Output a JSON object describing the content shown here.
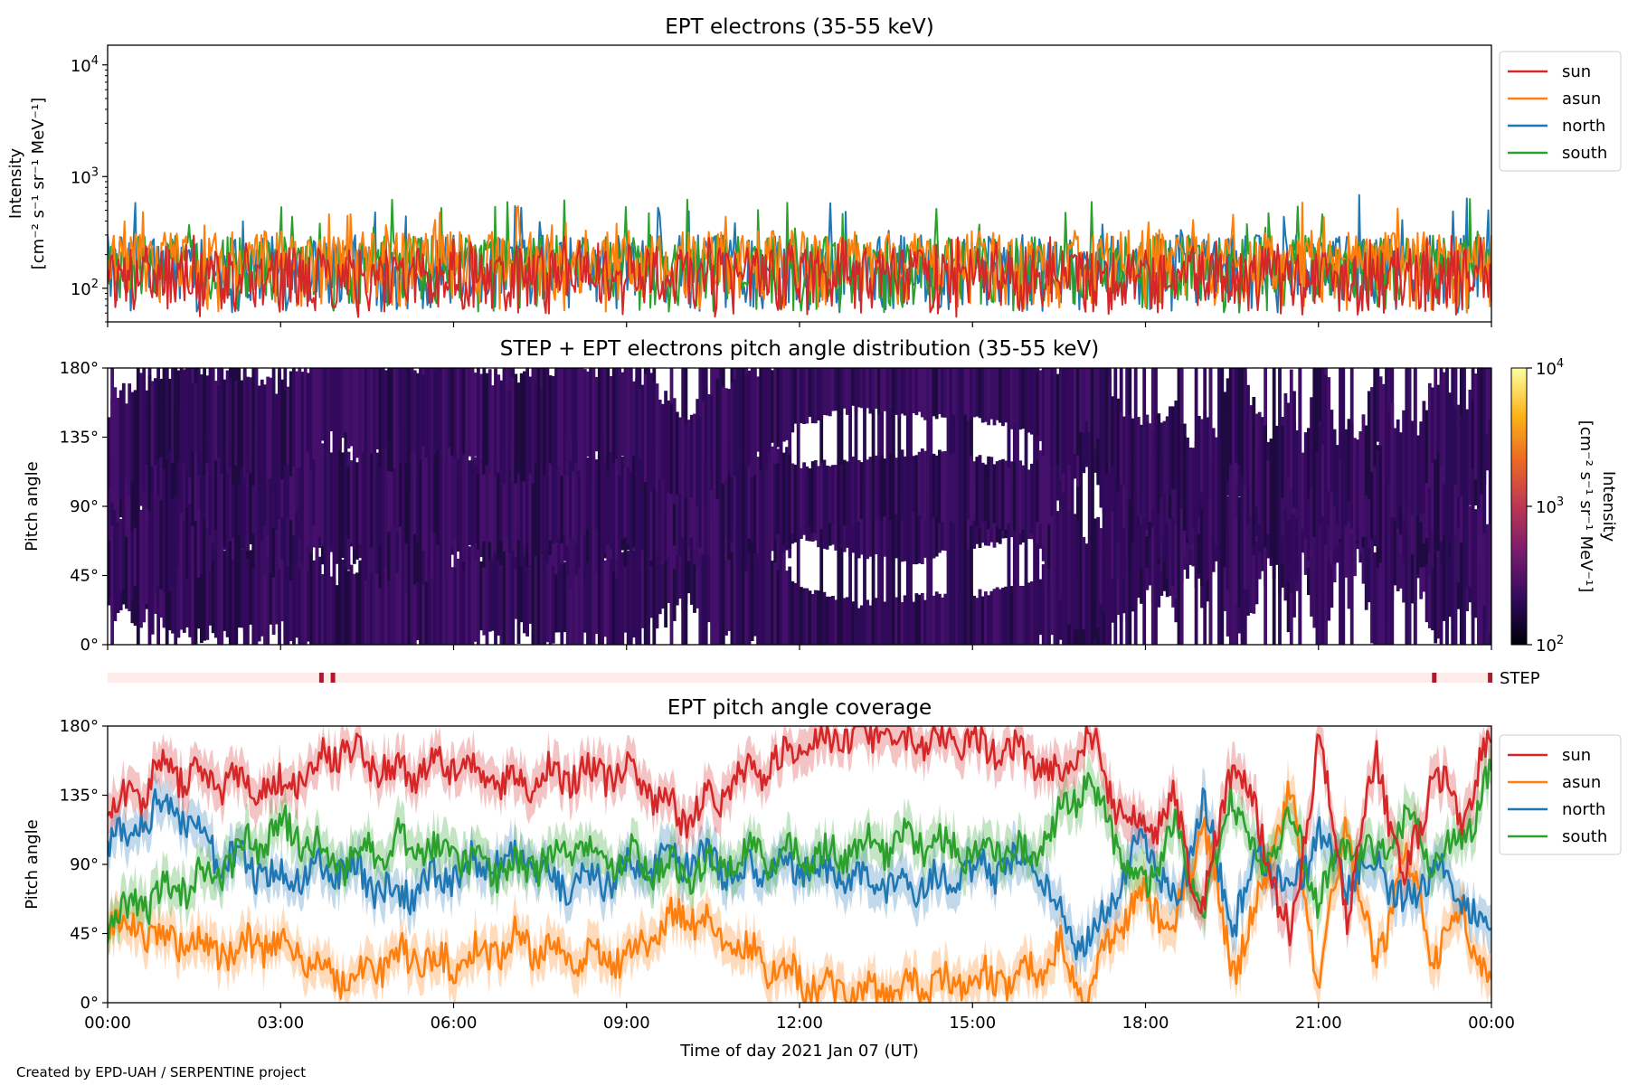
{
  "footer": "Created by EPD-UAH / SERPENTINE project",
  "xlabel": "Time of day 2021 Jan 07 (UT)",
  "x_ticks": [
    "00:00",
    "03:00",
    "06:00",
    "09:00",
    "12:00",
    "15:00",
    "18:00",
    "21:00",
    "00:00"
  ],
  "colors": {
    "sun": "#d62728",
    "asun": "#ff7f0e",
    "north": "#1f77b4",
    "south": "#2ca02c",
    "step_bar": "#fdecea",
    "step_mark": "#b2182b"
  },
  "chart_data": [
    {
      "type": "line",
      "title": "EPT electrons (35-55 keV)",
      "ylabel": "Intensity",
      "ylabel2": "[cm⁻² s⁻¹ sr⁻¹ MeV⁻¹]",
      "yscale": "log",
      "ylim": [
        50,
        15000
      ],
      "y_ticks": [
        {
          "value": 100,
          "base": "10",
          "exp": "2"
        },
        {
          "value": 1000,
          "base": "10",
          "exp": "3"
        },
        {
          "value": 10000,
          "base": "10",
          "exp": "4"
        }
      ],
      "x_range_hours": [
        0,
        24
      ],
      "legend_position": "outside-right",
      "series": [
        {
          "name": "north",
          "color": "#1f77b4",
          "typical_range": [
            60,
            300
          ],
          "max": 700
        },
        {
          "name": "south",
          "color": "#2ca02c",
          "typical_range": [
            60,
            300
          ],
          "max": 650
        },
        {
          "name": "asun",
          "color": "#ff7f0e",
          "typical_range": [
            60,
            330
          ],
          "max": 600
        },
        {
          "name": "sun",
          "color": "#d62728",
          "typical_range": [
            55,
            230
          ],
          "max": 300
        }
      ]
    },
    {
      "type": "heatmap",
      "title": "STEP + EPT electrons pitch angle distribution (35-55 keV)",
      "ylabel": "Pitch angle",
      "ylim": [
        0,
        180
      ],
      "y_ticks": [
        "0°",
        "45°",
        "90°",
        "135°",
        "180°"
      ],
      "x_range_hours": [
        0,
        24
      ],
      "colorbar": {
        "label": "Intensity",
        "label2": "[cm⁻² s⁻¹ sr⁻¹ MeV⁻¹]",
        "scale": "log",
        "range": [
          100,
          10000
        ],
        "ticks": [
          {
            "value": 100,
            "base": "10",
            "exp": "2"
          },
          {
            "value": 1000,
            "base": "10",
            "exp": "3"
          },
          {
            "value": 10000,
            "base": "10",
            "exp": "4"
          }
        ],
        "colormap": "inferno",
        "stops": [
          "#000004",
          "#320a5e",
          "#781c6d",
          "#bc3754",
          "#ed6925",
          "#fbb61a",
          "#fcffa4"
        ]
      },
      "typical_intensity": 250
    },
    {
      "type": "bar",
      "label": "STEP",
      "x_range_hours": [
        0,
        24
      ],
      "marks_hours": [
        3.7,
        3.9,
        23.0,
        23.97
      ]
    },
    {
      "type": "line",
      "title": "EPT pitch angle coverage",
      "ylabel": "Pitch angle",
      "ylim": [
        0,
        180
      ],
      "y_ticks": [
        "0°",
        "45°",
        "90°",
        "135°",
        "180°"
      ],
      "x_range_hours": [
        0,
        24
      ],
      "legend_position": "outside-right",
      "band": "shaded ± range",
      "series": [
        {
          "name": "sun",
          "color": "#d62728",
          "x": [
            0,
            1,
            2,
            3,
            4,
            5,
            6,
            7,
            8,
            9,
            10,
            11,
            12,
            13,
            14,
            15,
            16,
            16.5,
            17,
            17.5,
            18,
            18.5,
            19,
            19.5,
            20,
            20.5,
            21,
            21.5,
            22,
            22.5,
            23,
            23.5,
            24
          ],
          "y": [
            125,
            150,
            145,
            140,
            165,
            150,
            155,
            140,
            150,
            150,
            120,
            145,
            165,
            175,
            170,
            168,
            160,
            145,
            175,
            130,
            110,
            130,
            60,
            160,
            110,
            40,
            170,
            60,
            160,
            80,
            150,
            120,
            175
          ]
        },
        {
          "name": "asun",
          "color": "#ff7f0e",
          "x": [
            0,
            1,
            2,
            3,
            4,
            5,
            6,
            7,
            8,
            9,
            10,
            11,
            12,
            13,
            14,
            15,
            16,
            16.5,
            17,
            17.5,
            18,
            18.5,
            19,
            19.5,
            20,
            20.5,
            21,
            21.5,
            22,
            22.5,
            23,
            23.5,
            24
          ],
          "y": [
            55,
            40,
            35,
            40,
            15,
            30,
            25,
            40,
            30,
            30,
            60,
            35,
            15,
            5,
            10,
            12,
            20,
            35,
            5,
            50,
            70,
            50,
            120,
            20,
            70,
            140,
            10,
            120,
            20,
            100,
            30,
            60,
            10
          ]
        },
        {
          "name": "north",
          "color": "#1f77b4",
          "x": [
            0,
            1,
            2,
            3,
            4,
            5,
            6,
            7,
            8,
            9,
            10,
            11,
            12,
            13,
            14,
            15,
            16,
            16.5,
            17,
            17.5,
            18,
            18.5,
            19,
            19.5,
            20,
            20.5,
            21,
            21.5,
            22,
            22.5,
            23,
            23.5,
            24
          ],
          "y": [
            100,
            130,
            95,
            80,
            90,
            70,
            85,
            95,
            75,
            85,
            95,
            85,
            90,
            80,
            75,
            85,
            90,
            60,
            35,
            75,
            110,
            60,
            130,
            50,
            100,
            70,
            110,
            80,
            95,
            60,
            90,
            70,
            40
          ]
        },
        {
          "name": "south",
          "color": "#2ca02c",
          "x": [
            0,
            1,
            2,
            3,
            4,
            5,
            6,
            7,
            8,
            9,
            10,
            11,
            12,
            13,
            14,
            15,
            16,
            16.5,
            17,
            17.5,
            18,
            18.5,
            19,
            19.5,
            20,
            20.5,
            21,
            21.5,
            22,
            22.5,
            23,
            23.5,
            24
          ],
          "y": [
            55,
            70,
            90,
            115,
            90,
            105,
            95,
            85,
            100,
            95,
            85,
            95,
            95,
            100,
            105,
            100,
            95,
            120,
            145,
            105,
            75,
            115,
            55,
            140,
            85,
            120,
            70,
            105,
            90,
            120,
            95,
            105,
            150
          ]
        }
      ]
    }
  ]
}
